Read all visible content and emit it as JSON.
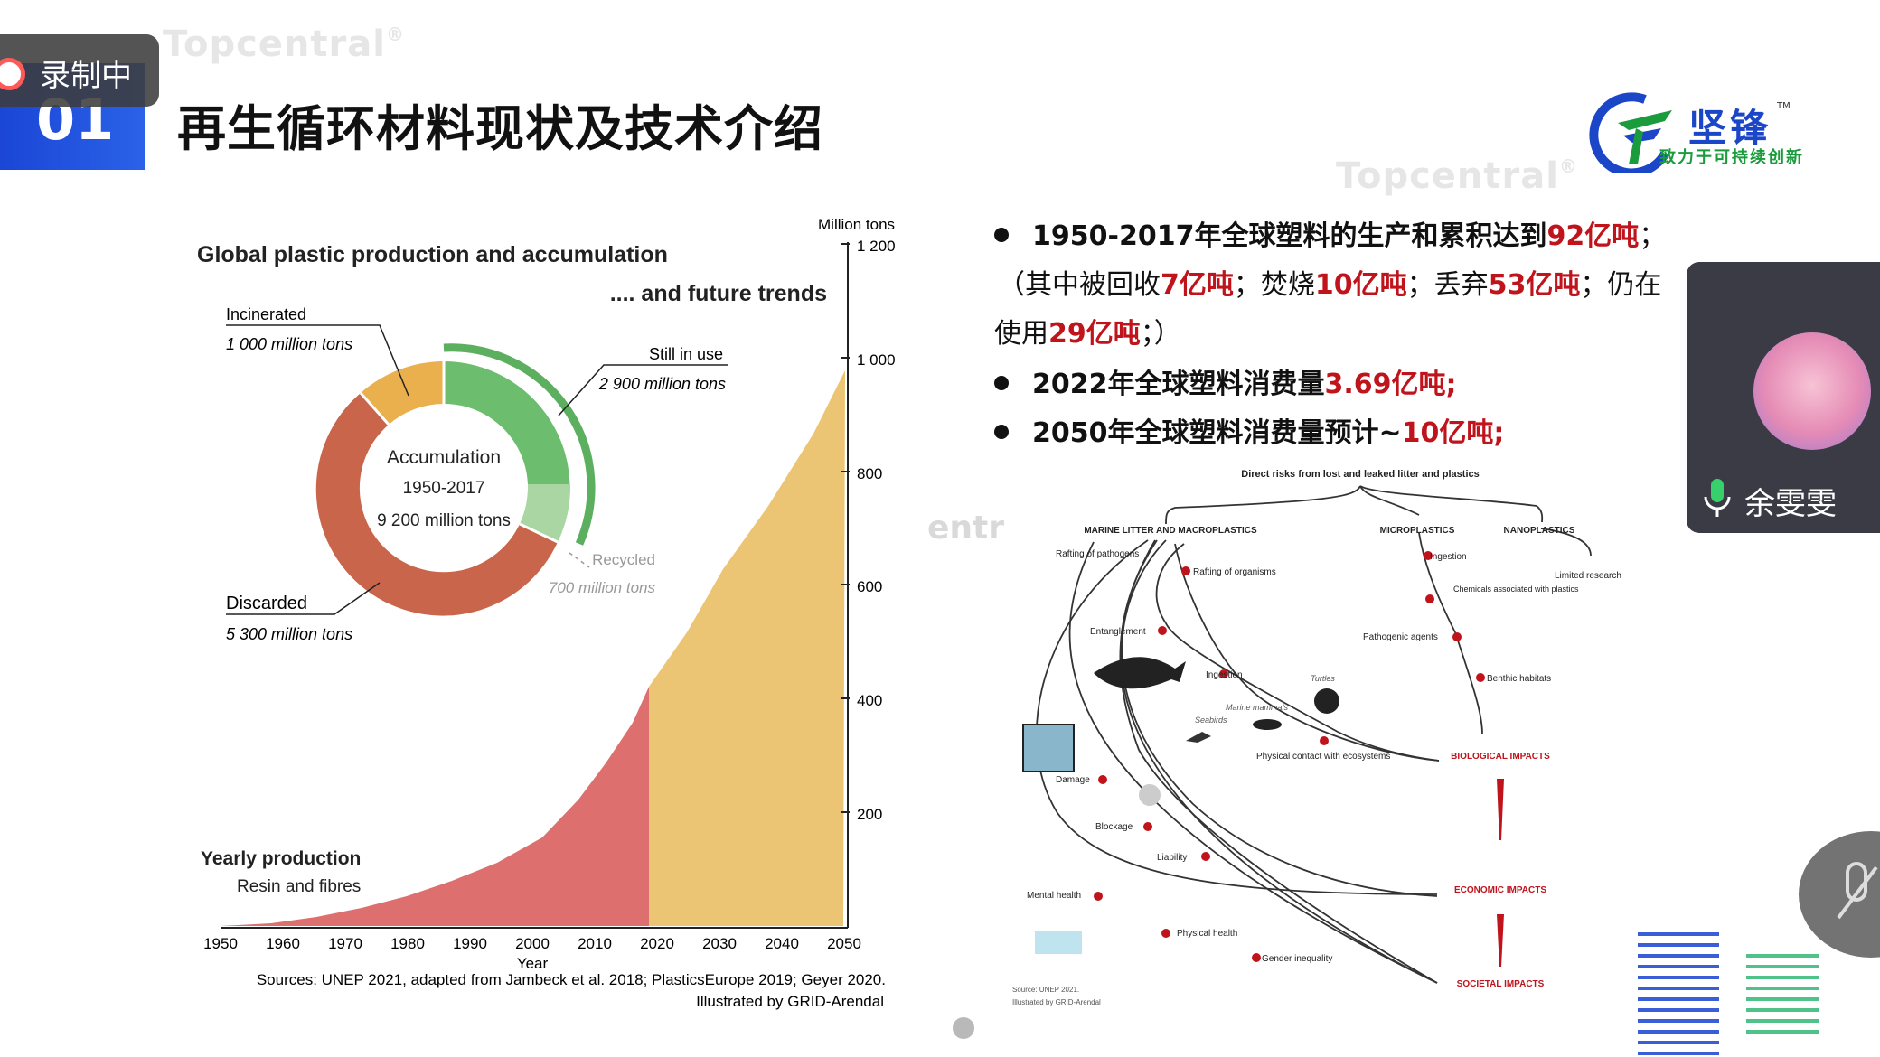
{
  "recording": {
    "label": "录制中"
  },
  "header": {
    "section_number": "01",
    "title": "再生循环材料现状及技术介绍",
    "watermark": "Topcentral",
    "watermark_reg": "®"
  },
  "logo": {
    "name": "坚锋",
    "tm": "TM",
    "slogan": "致力于可持续创新"
  },
  "left_figure": {
    "title": "Global plastic production and accumulation",
    "subtitle": ".... and future trends",
    "unit_label": "Million tons",
    "y_ticks": [
      "1 200",
      "1 000",
      "800",
      "600",
      "400",
      "200"
    ],
    "x_ticks": [
      "1950",
      "1960",
      "1970",
      "1980",
      "1990",
      "2000",
      "2010",
      "2020",
      "2030",
      "2040",
      "2050"
    ],
    "x_label": "Year",
    "incinerated_label": "Incinerated",
    "incinerated_value": "1 000 million tons",
    "still_in_use_label": "Still in use",
    "still_in_use_value": "2 900 million tons",
    "recycled_label": "Recycled",
    "recycled_value": "700 million tons",
    "discarded_label": "Discarded",
    "discarded_value": "5 300  million tons",
    "accum_title": "Accumulation",
    "accum_years": "1950-2017",
    "accum_total": "9 200 million tons",
    "yearly_title": "Yearly production",
    "yearly_sub": "Resin and fibres",
    "sources": "Sources: UNEP 2021, adapted from Jambeck et al. 2018; PlasticsEurope 2019; Geyer 2020.",
    "illustrated": "Illustrated by GRID-Arendal",
    "donut_colors": {
      "in_use": "#6dbd6e",
      "recycled": "#a9d6a2",
      "discarded": "#c9654a",
      "incinerated": "#e9b04d"
    },
    "area_colors": {
      "historic": "#dd6f6f",
      "future": "#ebc574"
    }
  },
  "bullets": [
    {
      "prefix": "1950-2017年全球塑料的生产和累积达到",
      "highlight": "92亿吨",
      "suffix": "；"
    },
    {
      "prefix": "2022年全球塑料消费量",
      "highlight": "3.69亿吨;",
      "suffix": ""
    },
    {
      "prefix": "2050年全球塑料消费量预计~",
      "highlight": "10亿吨;",
      "suffix": ""
    }
  ],
  "paren_detail": {
    "l1_a": "（其中被回收",
    "l1_b": "7亿吨",
    "l1_c": "；焚烧",
    "l1_d": "10亿吨",
    "l1_e": "；丢弃",
    "l1_f": "53亿吨",
    "l1_g": "；仍在",
    "l2_a": "使用",
    "l2_b": "29亿吨",
    "l2_c": "；）"
  },
  "right_diagram": {
    "top_title": "Direct risks from lost and leaked litter and plastics",
    "cat_macro": "MARINE LITTER AND MACROPLASTICS",
    "cat_micro": "MICROPLASTICS",
    "cat_nano": "NANOPLASTICS",
    "n_rafting_path": "Rafting of pathogens",
    "n_rafting_org": "Rafting of organisms",
    "n_entangle": "Entanglement",
    "n_ingestion": "Ingestion",
    "n_turtles": "Turtles",
    "n_marine_mammals": "Marine mammals",
    "n_seabirds": "Seabirds",
    "n_physical_contact": "Physical contact with ecosystems",
    "n_damage": "Damage",
    "n_blockage": "Blockage",
    "n_liability": "Liability",
    "n_mental": "Mental health",
    "n_physical_health": "Physical health",
    "n_gender": "Gender inequality",
    "n_micro_ingestion": "Ingestion",
    "n_chemicals": "Chemicals associated with plastics",
    "n_pathogenic": "Pathogenic agents",
    "n_benthic": "Benthic habitats",
    "n_limited": "Limited research",
    "bio_impacts": "BIOLOGICAL IMPACTS",
    "eco_impacts": "ECONOMIC IMPACTS",
    "soc_impacts": "SOCIETAL IMPACTS",
    "source": "Source: UNEP 2021.",
    "illustrated": "Illustrated by GRID-Arendal"
  },
  "participant": {
    "name": "余雯雯"
  }
}
